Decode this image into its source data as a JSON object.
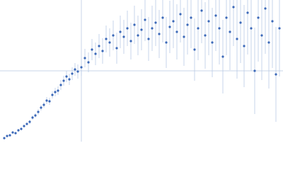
{
  "chart_data": {
    "type": "scatter",
    "xlim": [
      0,
      400
    ],
    "ylim": [
      0,
      200
    ],
    "reference_lines": {
      "x": 115,
      "y": 100,
      "color": "#c9d5e8"
    },
    "error_color": "#b9cbe6",
    "color": "#3b68b8",
    "x": [
      6,
      10,
      14,
      18,
      22,
      26,
      30,
      34,
      38,
      42,
      46,
      50,
      54,
      58,
      62,
      66,
      70,
      74,
      78,
      82,
      86,
      90,
      94,
      98,
      102,
      106,
      110,
      115,
      120,
      125,
      130,
      135,
      140,
      145,
      150,
      155,
      160,
      165,
      170,
      175,
      180,
      185,
      190,
      195,
      200,
      205,
      210,
      215,
      220,
      225,
      230,
      235,
      240,
      245,
      250,
      255,
      260,
      265,
      270,
      275,
      280,
      285,
      290,
      295,
      300,
      305,
      310,
      315,
      320,
      325,
      330,
      335,
      340,
      345,
      350,
      355,
      360,
      365,
      370,
      375,
      380,
      385,
      390,
      395
    ],
    "values": [
      5,
      8,
      9,
      13,
      12,
      16,
      18,
      22,
      25,
      28,
      34,
      37,
      42,
      48,
      52,
      58,
      57,
      66,
      70,
      72,
      80,
      86,
      92,
      88,
      96,
      102,
      99,
      105,
      118,
      112,
      130,
      124,
      135,
      128,
      145,
      140,
      150,
      132,
      155,
      148,
      160,
      142,
      165,
      150,
      158,
      172,
      145,
      160,
      168,
      152,
      175,
      140,
      162,
      170,
      155,
      180,
      148,
      165,
      175,
      130,
      160,
      185,
      150,
      170,
      140,
      178,
      160,
      120,
      175,
      155,
      190,
      145,
      168,
      135,
      182,
      160,
      100,
      175,
      150,
      188,
      140,
      170,
      95,
      160
    ],
    "errors": [
      1,
      1,
      1,
      1,
      1,
      2,
      2,
      2,
      2,
      3,
      3,
      3,
      4,
      4,
      4,
      5,
      5,
      5,
      6,
      6,
      7,
      7,
      8,
      8,
      9,
      9,
      10,
      12,
      13,
      14,
      15,
      16,
      17,
      18,
      19,
      20,
      21,
      22,
      23,
      24,
      25,
      26,
      27,
      28,
      29,
      30,
      31,
      32,
      33,
      34,
      35,
      36,
      37,
      38,
      39,
      40,
      41,
      42,
      43,
      44,
      45,
      46,
      47,
      48,
      49,
      50,
      51,
      52,
      53,
      54,
      55,
      56,
      57,
      58,
      59,
      60,
      61,
      62,
      63,
      64,
      65,
      66,
      67,
      68
    ]
  }
}
